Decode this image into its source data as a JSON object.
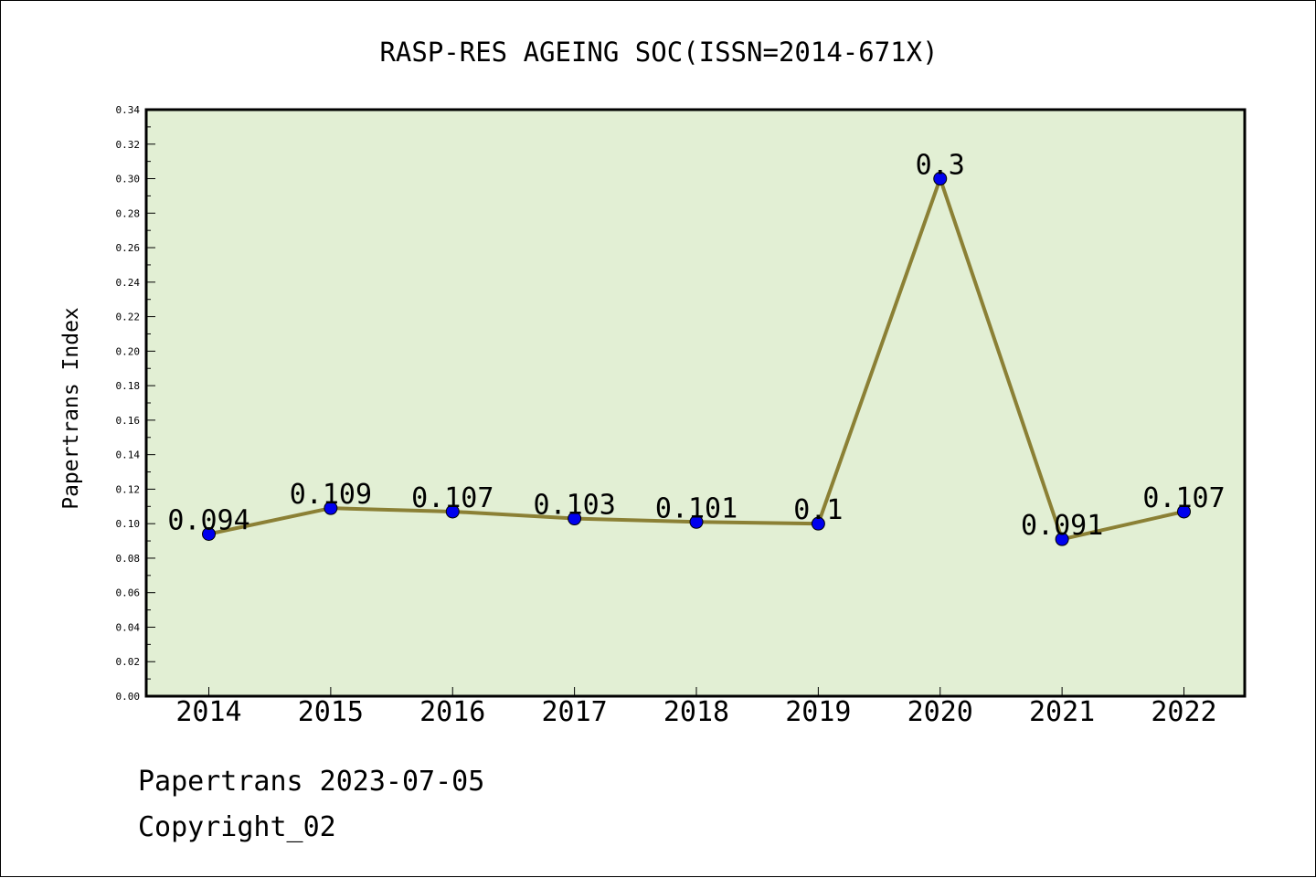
{
  "chart_data": {
    "type": "line",
    "title": "RASP-RES AGEING SOC(ISSN=2014-671X)",
    "xlabel": "",
    "ylabel": "Papertrans Index",
    "categories": [
      "2014",
      "2015",
      "2016",
      "2017",
      "2018",
      "2019",
      "2020",
      "2021",
      "2022"
    ],
    "values": [
      0.094,
      0.109,
      0.107,
      0.103,
      0.101,
      0.1,
      0.3,
      0.091,
      0.107
    ],
    "data_labels": [
      "0.094",
      "0.109",
      "0.107",
      "0.103",
      "0.101",
      "0.1",
      "0.3",
      "0.091",
      "0.107"
    ],
    "ylim": [
      0,
      0.34
    ],
    "yticks": [
      "0.00",
      "0.02",
      "0.04",
      "0.06",
      "0.08",
      "0.10",
      "0.12",
      "0.14",
      "0.16",
      "0.18",
      "0.20",
      "0.22",
      "0.24",
      "0.26",
      "0.28",
      "0.30",
      "0.32",
      "0.34"
    ],
    "grid": false,
    "colors": {
      "plot_background": "#e2efd4",
      "line": "#8b8035",
      "marker": "#0000ee"
    }
  },
  "footer": {
    "line1": "Papertrans 2023-07-05",
    "line2": "Copyright_02"
  }
}
